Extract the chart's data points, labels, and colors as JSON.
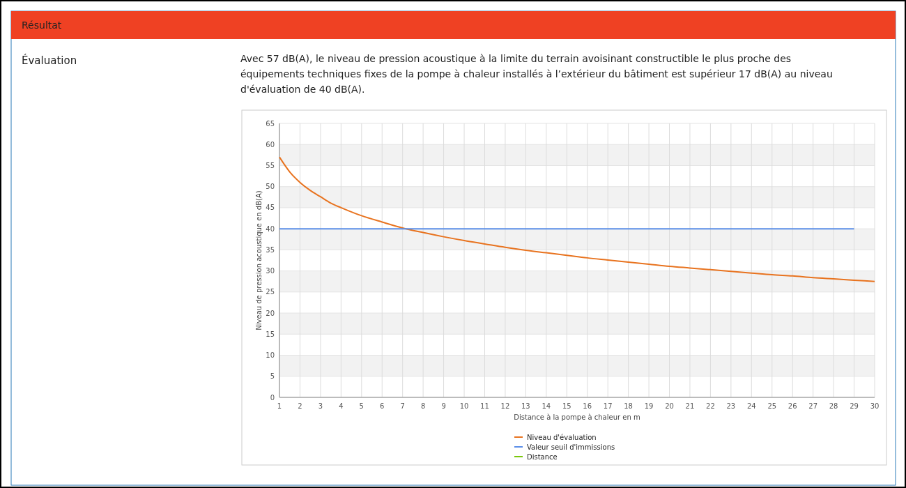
{
  "chart_data": {
    "type": "line",
    "title": "Résultat",
    "annotations": [
      "Évaluation",
      "Avec 57 dB(A), le niveau de pression acoustique à la limite du terrain avoisinant constructible le plus proche des équipements techniques fixes de la pompe à chaleur installés à l’extérieur du bâtiment est supérieur 17 dB(A) au niveau d'évaluation de 40 dB(A)."
    ],
    "xlabel": "Distance à la pompe à chaleur en m",
    "ylabel": "Niveau de pression acoustique en dB(A)",
    "series": [
      {
        "name": "Niveau d'évaluation",
        "color": "#e8731f",
        "x": [
          1,
          1.5,
          2,
          2.5,
          3,
          3.5,
          4,
          5,
          6,
          7,
          8,
          9,
          10,
          11,
          12,
          13,
          14,
          15,
          16,
          17,
          18,
          19,
          20,
          21,
          22,
          23,
          24,
          25,
          26,
          27,
          28,
          29,
          30
        ],
        "values": [
          57,
          53.5,
          51,
          49.1,
          47.6,
          46.1,
          45,
          43.1,
          41.6,
          40.2,
          39.1,
          38.1,
          37.2,
          36.4,
          35.6,
          34.9,
          34.3,
          33.7,
          33.1,
          32.6,
          32.1,
          31.6,
          31.1,
          30.7,
          30.3,
          29.9,
          29.5,
          29.1,
          28.8,
          28.4,
          28.1,
          27.8,
          27.5
        ]
      },
      {
        "name": "Valeur seuil d'immissions",
        "color": "#5b8fe8",
        "x": [
          1,
          29
        ],
        "values": [
          40,
          40
        ]
      },
      {
        "name": "Distance",
        "color": "#7ac70c"
      }
    ],
    "xlim": [
      1,
      30
    ],
    "xticks": [
      1,
      2,
      3,
      4,
      5,
      6,
      7,
      8,
      9,
      10,
      11,
      12,
      13,
      14,
      15,
      16,
      17,
      18,
      19,
      20,
      21,
      22,
      23,
      24,
      25,
      26,
      27,
      28,
      29,
      30
    ],
    "ylim": [
      0,
      65
    ],
    "yticks": [
      0,
      5,
      10,
      15,
      20,
      25,
      30,
      35,
      40,
      45,
      50,
      55,
      60,
      65
    ],
    "grid": true,
    "legend": "bottom",
    "marker": "none",
    "line_style": "solid"
  }
}
